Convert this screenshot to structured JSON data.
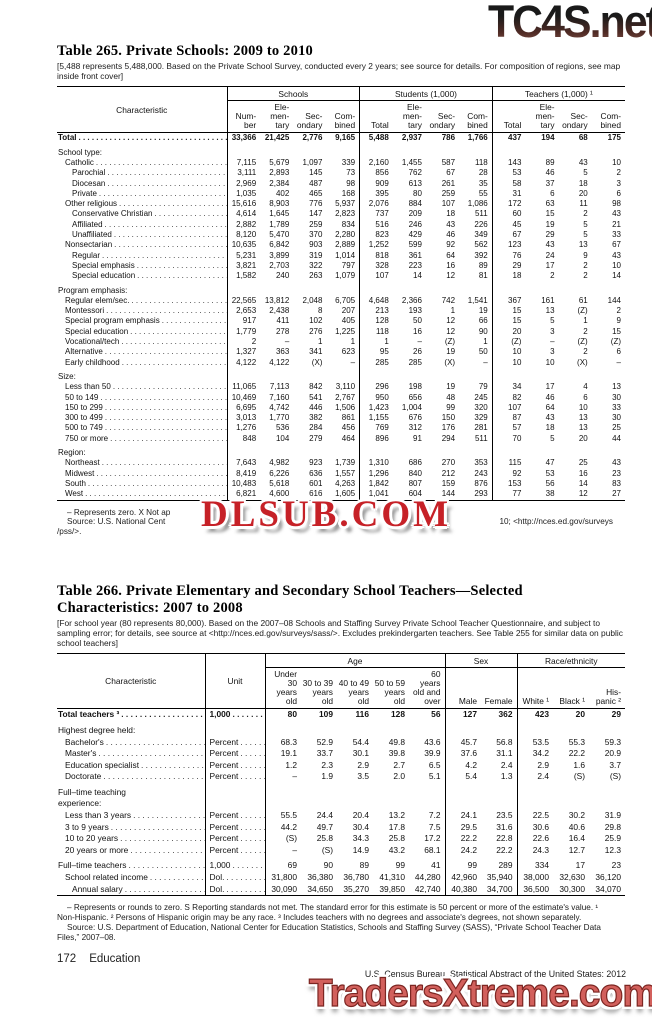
{
  "watermarks": {
    "top_right": "TC4S.net",
    "center": "DLSUB.COM",
    "bottom": "TradersXtreme.com"
  },
  "footer": {
    "page_number": "172",
    "section": "Education",
    "source": "U.S. Census Bureau, Statistical Abstract of the United States: 2012"
  },
  "table265": {
    "title": "Table 265. Private Schools: 2009 to 2010",
    "bracket_note": "[5,488 represents 5,488,000. Based on the Private School Survey, conducted every 2 years; see source for details. For composition of regions, see map inside front cover]",
    "header": {
      "characteristic": "Characteristic",
      "groups": [
        {
          "label": "Schools",
          "span": 4
        },
        {
          "label": "Students (1,000)",
          "span": 4
        },
        {
          "label": "Teachers (1,000) ¹",
          "span": 4
        }
      ],
      "columns": [
        "Num-\nber",
        "Ele-\nmen-\ntary",
        "Sec-\nondary",
        "Com-\nbined",
        "Total",
        "Ele-\nmen-\ntary",
        "Sec-\nondary",
        "Com-\nbined",
        "Total",
        "Ele-\nmen-\ntary",
        "Sec-\nondary",
        "Com-\nbined"
      ]
    },
    "rows": [
      {
        "label": "Total",
        "indent": 0,
        "type": "total",
        "values": [
          "33,366",
          "21,425",
          "2,776",
          "9,165",
          "5,488",
          "2,937",
          "786",
          "1,766",
          "437",
          "194",
          "68",
          "175"
        ]
      },
      {
        "label": "School type:",
        "indent": 0,
        "type": "section"
      },
      {
        "label": "Catholic",
        "indent": 1,
        "type": "data",
        "values": [
          "7,115",
          "5,679",
          "1,097",
          "339",
          "2,160",
          "1,455",
          "587",
          "118",
          "143",
          "89",
          "43",
          "10"
        ]
      },
      {
        "label": "Parochial",
        "indent": 2,
        "type": "data",
        "values": [
          "3,111",
          "2,893",
          "145",
          "73",
          "856",
          "762",
          "67",
          "28",
          "53",
          "46",
          "5",
          "2"
        ]
      },
      {
        "label": "Diocesan",
        "indent": 2,
        "type": "data",
        "values": [
          "2,969",
          "2,384",
          "487",
          "98",
          "909",
          "613",
          "261",
          "35",
          "58",
          "37",
          "18",
          "3"
        ]
      },
      {
        "label": "Private",
        "indent": 2,
        "type": "data",
        "values": [
          "1,035",
          "402",
          "465",
          "168",
          "395",
          "80",
          "259",
          "55",
          "31",
          "6",
          "20",
          "6"
        ]
      },
      {
        "label": "Other religious",
        "indent": 1,
        "type": "data",
        "values": [
          "15,616",
          "8,903",
          "776",
          "5,937",
          "2,076",
          "884",
          "107",
          "1,086",
          "172",
          "63",
          "11",
          "98"
        ]
      },
      {
        "label": "Conservative Christian",
        "indent": 2,
        "type": "data",
        "values": [
          "4,614",
          "1,645",
          "147",
          "2,823",
          "737",
          "209",
          "18",
          "511",
          "60",
          "15",
          "2",
          "43"
        ]
      },
      {
        "label": "Affiliated",
        "indent": 2,
        "type": "data",
        "values": [
          "2,882",
          "1,789",
          "259",
          "834",
          "516",
          "246",
          "43",
          "226",
          "45",
          "19",
          "5",
          "21"
        ]
      },
      {
        "label": "Unaffiliated",
        "indent": 2,
        "type": "data",
        "values": [
          "8,120",
          "5,470",
          "370",
          "2,280",
          "823",
          "429",
          "46",
          "349",
          "67",
          "29",
          "5",
          "33"
        ]
      },
      {
        "label": "Nonsectarian",
        "indent": 1,
        "type": "data",
        "values": [
          "10,635",
          "6,842",
          "903",
          "2,889",
          "1,252",
          "599",
          "92",
          "562",
          "123",
          "43",
          "13",
          "67"
        ]
      },
      {
        "label": "Regular",
        "indent": 2,
        "type": "data",
        "values": [
          "5,231",
          "3,899",
          "319",
          "1,014",
          "818",
          "361",
          "64",
          "392",
          "76",
          "24",
          "9",
          "43"
        ]
      },
      {
        "label": "Special emphasis",
        "indent": 2,
        "type": "data",
        "values": [
          "3,821",
          "2,703",
          "322",
          "797",
          "328",
          "223",
          "16",
          "89",
          "29",
          "17",
          "2",
          "10"
        ]
      },
      {
        "label": "Special education",
        "indent": 2,
        "type": "data",
        "values": [
          "1,582",
          "240",
          "263",
          "1,079",
          "107",
          "14",
          "12",
          "81",
          "18",
          "2",
          "2",
          "14"
        ]
      },
      {
        "label": "Program emphasis:",
        "indent": 0,
        "type": "section"
      },
      {
        "label": "Regular elem/sec.",
        "indent": 1,
        "type": "data",
        "values": [
          "22,565",
          "13,812",
          "2,048",
          "6,705",
          "4,648",
          "2,366",
          "742",
          "1,541",
          "367",
          "161",
          "61",
          "144"
        ]
      },
      {
        "label": "Montessori",
        "indent": 1,
        "type": "data",
        "values": [
          "2,653",
          "2,438",
          "8",
          "207",
          "213",
          "193",
          "1",
          "19",
          "15",
          "13",
          "(Z)",
          "2"
        ]
      },
      {
        "label": "Special program emphasis",
        "indent": 1,
        "type": "data",
        "values": [
          "917",
          "411",
          "102",
          "405",
          "128",
          "50",
          "12",
          "66",
          "15",
          "5",
          "1",
          "9"
        ]
      },
      {
        "label": "Special education",
        "indent": 1,
        "type": "data",
        "values": [
          "1,779",
          "278",
          "276",
          "1,225",
          "118",
          "16",
          "12",
          "90",
          "20",
          "3",
          "2",
          "15"
        ]
      },
      {
        "label": "Vocational/tech",
        "indent": 1,
        "type": "data",
        "values": [
          "2",
          "–",
          "1",
          "1",
          "1",
          "–",
          "(Z)",
          "1",
          "(Z)",
          "–",
          "(Z)",
          "(Z)"
        ]
      },
      {
        "label": "Alternative",
        "indent": 1,
        "type": "data",
        "values": [
          "1,327",
          "363",
          "341",
          "623",
          "95",
          "26",
          "19",
          "50",
          "10",
          "3",
          "2",
          "6"
        ]
      },
      {
        "label": "Early childhood",
        "indent": 1,
        "type": "data",
        "values": [
          "4,122",
          "4,122",
          "(X)",
          "–",
          "285",
          "285",
          "(X)",
          "–",
          "10",
          "10",
          "(X)",
          "–"
        ]
      },
      {
        "label": "Size:",
        "indent": 0,
        "type": "section"
      },
      {
        "label": "Less than 50",
        "indent": 1,
        "type": "data",
        "values": [
          "11,065",
          "7,113",
          "842",
          "3,110",
          "296",
          "198",
          "19",
          "79",
          "34",
          "17",
          "4",
          "13"
        ]
      },
      {
        "label": "50 to 149",
        "indent": 1,
        "type": "data",
        "values": [
          "10,469",
          "7,160",
          "541",
          "2,767",
          "950",
          "656",
          "48",
          "245",
          "82",
          "46",
          "6",
          "30"
        ]
      },
      {
        "label": "150 to 299",
        "indent": 1,
        "type": "data",
        "values": [
          "6,695",
          "4,742",
          "446",
          "1,506",
          "1,423",
          "1,004",
          "99",
          "320",
          "107",
          "64",
          "10",
          "33"
        ]
      },
      {
        "label": "300 to 499",
        "indent": 1,
        "type": "data",
        "values": [
          "3,013",
          "1,770",
          "382",
          "861",
          "1,155",
          "676",
          "150",
          "329",
          "87",
          "43",
          "13",
          "30"
        ]
      },
      {
        "label": "500 to 749",
        "indent": 1,
        "type": "data",
        "values": [
          "1,276",
          "536",
          "284",
          "456",
          "769",
          "312",
          "176",
          "281",
          "57",
          "18",
          "13",
          "25"
        ]
      },
      {
        "label": "750 or more",
        "indent": 1,
        "type": "data",
        "values": [
          "848",
          "104",
          "279",
          "464",
          "896",
          "91",
          "294",
          "511",
          "70",
          "5",
          "20",
          "44"
        ]
      },
      {
        "label": "Region:",
        "indent": 0,
        "type": "section"
      },
      {
        "label": "Northeast",
        "indent": 1,
        "type": "data",
        "values": [
          "7,643",
          "4,982",
          "923",
          "1,739",
          "1,310",
          "686",
          "270",
          "353",
          "115",
          "47",
          "25",
          "43"
        ]
      },
      {
        "label": "Midwest",
        "indent": 1,
        "type": "data",
        "values": [
          "8,419",
          "6,226",
          "636",
          "1,557",
          "1,296",
          "840",
          "212",
          "243",
          "92",
          "53",
          "16",
          "23"
        ]
      },
      {
        "label": "South",
        "indent": 1,
        "type": "data",
        "values": [
          "10,483",
          "5,618",
          "601",
          "4,263",
          "1,842",
          "807",
          "159",
          "876",
          "153",
          "56",
          "14",
          "83"
        ]
      },
      {
        "label": "West",
        "indent": 1,
        "type": "data",
        "values": [
          "6,821",
          "4,600",
          "616",
          "1,605",
          "1,041",
          "604",
          "144",
          "293",
          "77",
          "38",
          "12",
          "27"
        ]
      }
    ],
    "footnote": {
      "line1_left": "– Represents zero. X Not ap",
      "line2_left": "Source: U.S. National Cent",
      "line2_right": "10; <http://nces.ed.gov/surveys",
      "line3": "/pss/>."
    }
  },
  "table266": {
    "title": "Table 266. Private Elementary and Secondary School Teachers—Selected Characteristics: 2007 to 2008",
    "bracket_note": "[For school year (80 represents 80,000). Based on the 2007–08 Schools and Staffing Survey Private School Teacher Questionnaire, and subject to sampling error; for details, see source at <http://nces.ed.gov/surveys/sass/>. Excludes prekindergarten teachers. See Table 255 for similar data on public school teachers]",
    "header": {
      "characteristic": "Characteristic",
      "unit": "Unit",
      "groups": [
        {
          "label": "Age",
          "span": 5
        },
        {
          "label": "Sex",
          "span": 2
        },
        {
          "label": "Race/ethnicity",
          "span": 3
        }
      ],
      "columns": [
        "Under\n30\nyears\nold",
        "30 to 39\nyears\nold",
        "40 to 49\nyears\nold",
        "50 to 59\nyears\nold",
        "60\nyears\nold and\nover",
        "Male",
        "Female",
        "White ¹",
        "Black ¹",
        "His-\npanic ²"
      ]
    },
    "rows": [
      {
        "label": "Total teachers ³",
        "indent": 0,
        "type": "total",
        "unit": "1,000",
        "values": [
          "80",
          "109",
          "116",
          "128",
          "56",
          "127",
          "362",
          "423",
          "20",
          "29"
        ]
      },
      {
        "label": "Highest degree held:",
        "indent": 0,
        "type": "section"
      },
      {
        "label": "Bachelor's",
        "indent": 1,
        "type": "data",
        "unit": "Percent",
        "values": [
          "68.3",
          "52.9",
          "54.4",
          "49.8",
          "43.6",
          "45.7",
          "56.8",
          "53.5",
          "55.3",
          "59.3"
        ]
      },
      {
        "label": "Master's",
        "indent": 1,
        "type": "data",
        "unit": "Percent",
        "values": [
          "19.1",
          "33.7",
          "30.1",
          "39.8",
          "39.9",
          "37.6",
          "31.1",
          "34.2",
          "22.2",
          "20.9"
        ]
      },
      {
        "label": "Education specialist",
        "indent": 1,
        "type": "data",
        "unit": "Percent",
        "values": [
          "1.2",
          "2.3",
          "2.9",
          "2.7",
          "6.5",
          "4.2",
          "2.4",
          "2.9",
          "1.6",
          "3.7"
        ]
      },
      {
        "label": "Doctorate",
        "indent": 1,
        "type": "data",
        "unit": "Percent",
        "values": [
          "–",
          "1.9",
          "3.5",
          "2.0",
          "5.1",
          "5.4",
          "1.3",
          "2.4",
          "(S)",
          "(S)"
        ]
      },
      {
        "label": "Full–time teaching\nexperience:",
        "indent": 0,
        "type": "section"
      },
      {
        "label": "Less than 3 years",
        "indent": 1,
        "type": "data",
        "unit": "Percent",
        "values": [
          "55.5",
          "24.4",
          "20.4",
          "13.2",
          "7.2",
          "24.1",
          "23.5",
          "22.5",
          "30.2",
          "31.9"
        ]
      },
      {
        "label": "3 to 9 years",
        "indent": 1,
        "type": "data",
        "unit": "Percent",
        "values": [
          "44.2",
          "49.7",
          "30.4",
          "17.8",
          "7.5",
          "29.5",
          "31.6",
          "30.6",
          "40.6",
          "29.8"
        ]
      },
      {
        "label": "10 to 20 years",
        "indent": 1,
        "type": "data",
        "unit": "Percent",
        "values": [
          "(S)",
          "25.8",
          "34.3",
          "25.8",
          "17.2",
          "22.2",
          "22.8",
          "22.6",
          "16.4",
          "25.9"
        ]
      },
      {
        "label": "20 years or more",
        "indent": 1,
        "type": "data",
        "unit": "Percent",
        "values": [
          "–",
          "(S)",
          "14.9",
          "43.2",
          "68.1",
          "24.2",
          "22.2",
          "24.3",
          "12.7",
          "12.3"
        ]
      },
      {
        "label": "Full–time teachers",
        "indent": 0,
        "type": "data",
        "gap": true,
        "unit": "1,000",
        "values": [
          "69",
          "90",
          "89",
          "99",
          "41",
          "99",
          "289",
          "334",
          "17",
          "23"
        ]
      },
      {
        "label": "School related income",
        "indent": 1,
        "type": "data",
        "unit": "Dol.",
        "values": [
          "31,800",
          "36,380",
          "36,780",
          "41,310",
          "44,280",
          "42,960",
          "35,940",
          "38,000",
          "32,630",
          "36,120"
        ]
      },
      {
        "label": "Annual salary",
        "indent": 2,
        "type": "data",
        "unit": "Dol.",
        "values": [
          "30,090",
          "34,650",
          "35,270",
          "39,850",
          "42,740",
          "40,380",
          "34,700",
          "36,500",
          "30,300",
          "34,070"
        ]
      }
    ],
    "footnotes": [
      "– Represents or rounds to zero. S Reporting standards not met. The standard error for this estimate is 50 percent or more of the estimate's value. ¹ Non-Hispanic. ² Persons of Hispanic origin may be any race. ³ Includes teachers with no degrees and associate's degrees, not shown separately.",
      "Source: U.S. Department of Education, National Center for Education Statistics, Schools and Staffing Survey (SASS), “Private School Teacher Data Files,” 2007–08."
    ]
  }
}
